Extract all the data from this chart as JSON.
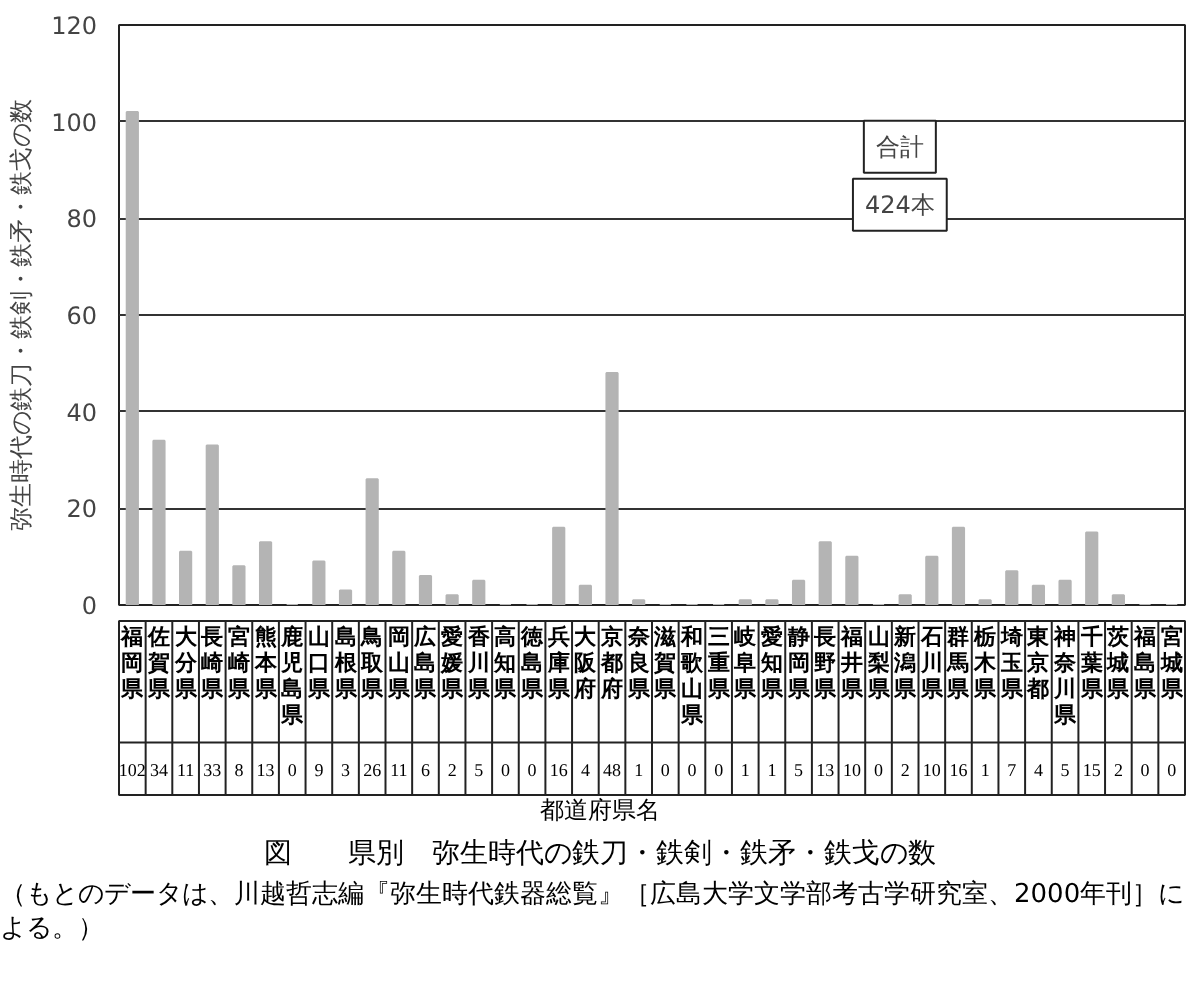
{
  "chart_data": {
    "type": "bar",
    "title": "図　　県別　弥生時代の鉄刀・鉄剣・鉄矛・鉄戈の数",
    "xlabel": "都道府県名",
    "ylabel": "弥生時代の鉄刀・鉄剣・鉄矛・鉄戈の数",
    "categories": [
      "福岡県",
      "佐賀県",
      "大分県",
      "長崎県",
      "宮崎県",
      "熊本県",
      "鹿児島県",
      "山口県",
      "島根県",
      "鳥取県",
      "岡山県",
      "広島県",
      "愛媛県",
      "香川県",
      "高知県",
      "徳島県",
      "兵庫県",
      "大阪府",
      "京都府",
      "奈良県",
      "滋賀県",
      "和歌山県",
      "三重県",
      "岐阜県",
      "愛知県",
      "静岡県",
      "長野県",
      "福井県",
      "山梨県",
      "新潟県",
      "石川県",
      "群馬県",
      "栃木県",
      "埼玉県",
      "東京都",
      "神奈川県",
      "千葉県",
      "茨城県",
      "福島県",
      "宮城県"
    ],
    "values": [
      102,
      34,
      11,
      33,
      8,
      13,
      0,
      9,
      3,
      26,
      11,
      6,
      2,
      5,
      0,
      0,
      16,
      4,
      48,
      1,
      0,
      0,
      0,
      1,
      1,
      5,
      13,
      10,
      0,
      2,
      10,
      16,
      1,
      7,
      4,
      5,
      15,
      2,
      0,
      0
    ],
    "color": "#b4b4b4",
    "ylim": [
      0,
      120
    ],
    "yticks": [
      0,
      20,
      40,
      60,
      80,
      100,
      120
    ],
    "grid": "y",
    "data_labels": true,
    "annotations": [
      "合計",
      "424本",
      "（もとのデータは、川越哲志編『弥生時代鉄器総覧』［広島大学文学部考古学研究室、2000年刊］による。）"
    ]
  }
}
